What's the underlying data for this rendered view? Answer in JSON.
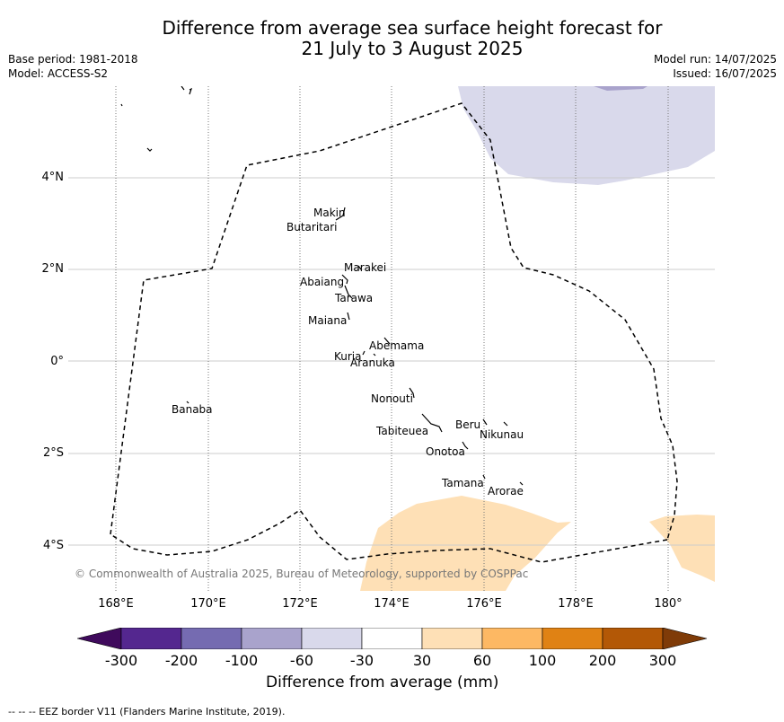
{
  "title_line1": "Difference from average sea surface height forecast for",
  "title_line2": "21 July to 3 August 2025",
  "meta": {
    "base_period": "Base period: 1981-2018",
    "model": "Model: ACCESS-S2",
    "model_run": "Model run: 14/07/2025",
    "issued": "Issued: 16/07/2025"
  },
  "map": {
    "lat_ticks": [
      "4°N",
      "2°N",
      "0°",
      "2°S",
      "4°S"
    ],
    "lon_ticks": [
      "168°E",
      "170°E",
      "172°E",
      "174°E",
      "176°E",
      "178°E",
      "180°"
    ],
    "islands": [
      {
        "id": "makin",
        "label": "Makin"
      },
      {
        "id": "butaritari",
        "label": "Butaritari"
      },
      {
        "id": "marakei",
        "label": "Marakei"
      },
      {
        "id": "abaiang",
        "label": "Abaiang"
      },
      {
        "id": "tarawa",
        "label": "Tarawa"
      },
      {
        "id": "maiana",
        "label": "Maiana"
      },
      {
        "id": "abemama",
        "label": "Abemama"
      },
      {
        "id": "kuria",
        "label": "Kuria"
      },
      {
        "id": "aranuka",
        "label": "Aranuka"
      },
      {
        "id": "nonouti",
        "label": "Nonouti"
      },
      {
        "id": "banaba",
        "label": "Banaba"
      },
      {
        "id": "beru",
        "label": "Beru"
      },
      {
        "id": "tabiteuea",
        "label": "Tabiteuea"
      },
      {
        "id": "nikunau",
        "label": "Nikunau"
      },
      {
        "id": "onotoa",
        "label": "Onotoa"
      },
      {
        "id": "tamana",
        "label": "Tamana"
      },
      {
        "id": "arorae",
        "label": "Arorae"
      }
    ],
    "copyright": "© Commonwealth of Australia 2025, Bureau of Meteorology, supported by COSPPac"
  },
  "colorbar": {
    "ticks": [
      "-300",
      "-200",
      "-100",
      "-60",
      "-30",
      "30",
      "60",
      "100",
      "200",
      "300"
    ],
    "colors": [
      "#3f0a5c",
      "#54278f",
      "#756bb1",
      "#a9a3cc",
      "#d9d9eb",
      "#ffffff",
      "#fee0b6",
      "#fdb863",
      "#e08214",
      "#b35806",
      "#7f3b08"
    ],
    "label": "Difference from average (mm)"
  },
  "footnote": "--  --  -- EEZ border V11 (Flanders Marine Institute, 2019)."
}
